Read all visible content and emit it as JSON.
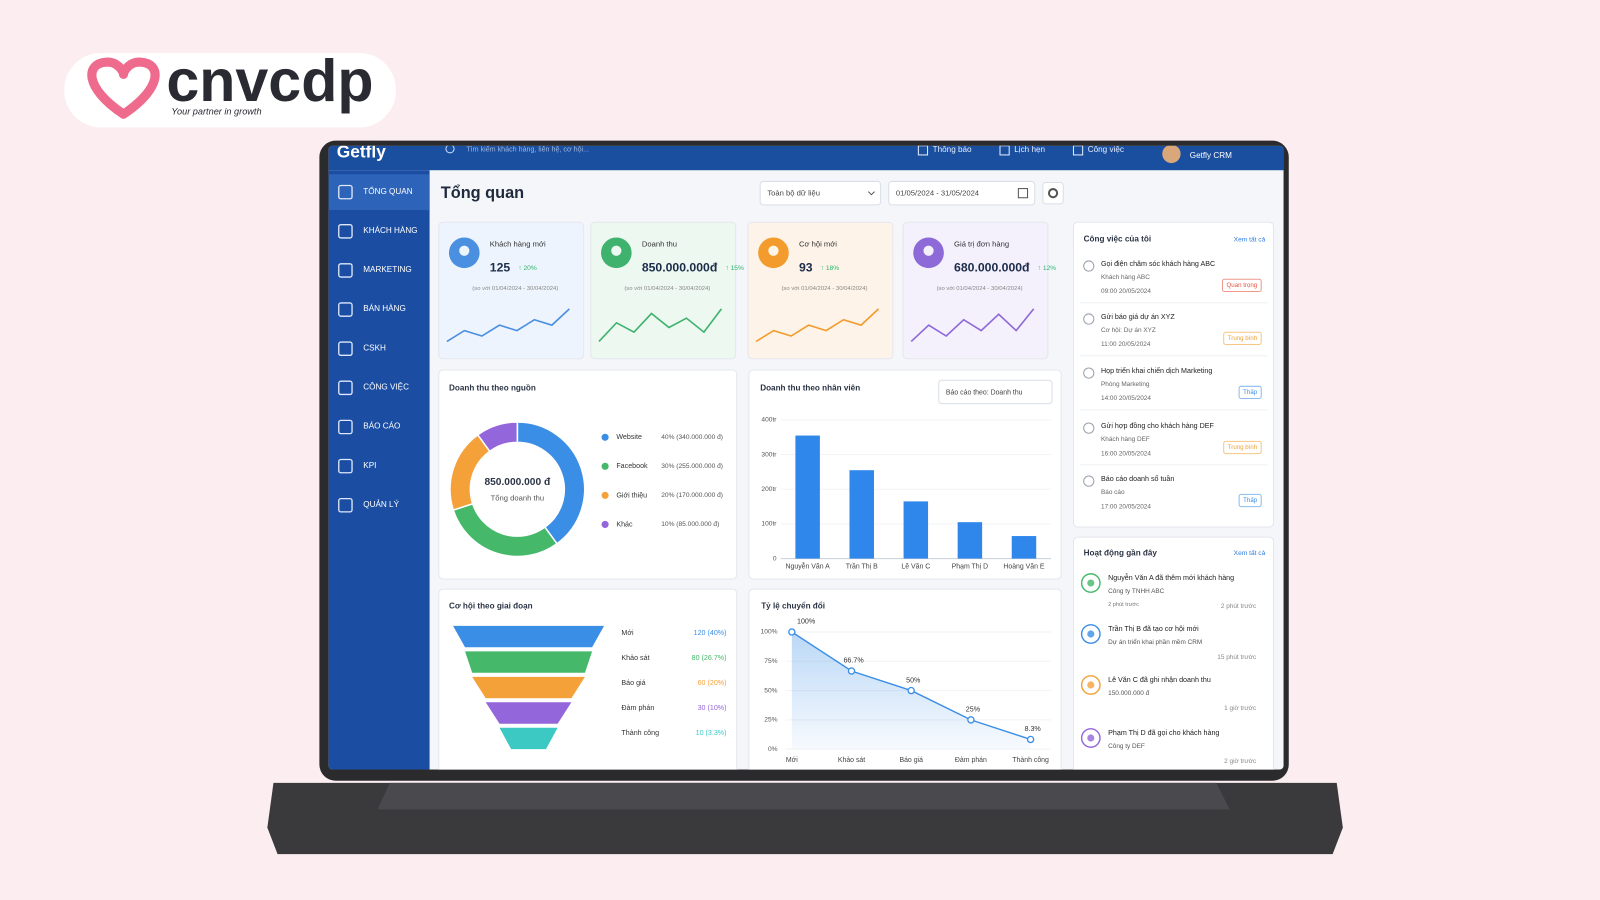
{
  "brand": {
    "name": "cnvcdp",
    "tagline": "Your partner in growth"
  },
  "app": {
    "logo": "Getfly",
    "search_placeholder": "Tìm kiếm khách hàng, liên hệ, cơ hội...",
    "top_actions": [
      "Thông báo",
      "Lịch hẹn",
      "Công việc"
    ],
    "user": "Getfly CRM"
  },
  "sidebar": [
    "TỔNG QUAN",
    "KHÁCH HÀNG",
    "MARKETING",
    "BÁN HÀNG",
    "CSKH",
    "CÔNG VIỆC",
    "BÁO CÁO",
    "KPI",
    "QUẢN LÝ"
  ],
  "page": {
    "title": "Tổng quan",
    "filter": "Toàn bộ dữ liệu",
    "date_range": "01/05/2024 - 31/05/2024"
  },
  "kpis": [
    {
      "label": "Khách hàng mới",
      "value": "125",
      "change": "↑ 20%",
      "compare": "(so với 01/04/2024 - 30/04/2024)",
      "color": "#4a8fe0",
      "background": "#eef4fd",
      "trend": [
        3,
        5,
        4,
        6,
        5,
        7,
        6,
        9
      ]
    },
    {
      "label": "Doanh thu",
      "value": "850.000.000đ",
      "change": "↑ 15%",
      "compare": "(so với 01/04/2024 - 30/04/2024)",
      "color": "#3fb36d",
      "background": "#edf8f1",
      "trend": [
        2,
        6,
        4,
        8,
        5,
        7,
        4,
        9
      ]
    },
    {
      "label": "Cơ hội mới",
      "value": "93",
      "change": "↑ 18%",
      "compare": "(so với 01/04/2024 - 30/04/2024)",
      "color": "#f39c2d",
      "background": "#fdf3e8",
      "trend": [
        2,
        4,
        3,
        5,
        4,
        6,
        5,
        8
      ]
    },
    {
      "label": "Giá trị đơn hàng",
      "value": "680.000.000đ",
      "change": "↑ 12%",
      "compare": "(so với 01/04/2024 - 30/04/2024)",
      "color": "#8e6ad8",
      "background": "#f4f0fc",
      "trend": [
        3,
        6,
        4,
        7,
        5,
        8,
        5,
        9
      ]
    }
  ],
  "revenue_by_source": {
    "type": "pie",
    "title": "Doanh thu theo nguồn",
    "center_value": "850.000.000 đ",
    "center_label": "Tổng doanh thu",
    "categories": [
      "Website",
      "Facebook",
      "Giới thiệu",
      "Khác"
    ],
    "values": [
      40,
      30,
      20,
      10
    ],
    "value_labels": [
      "40% (340.000.000 đ)",
      "30% (255.000.000 đ)",
      "20% (170.000.000 đ)",
      "10% (85.000.000 đ)"
    ],
    "colors": [
      "#3a8ee6",
      "#45b86a",
      "#f4a13a",
      "#9466dc"
    ]
  },
  "revenue_by_staff": {
    "type": "bar",
    "title": "Doanh thu theo nhân viên",
    "report_select": "Báo cáo theo: Doanh thu",
    "categories": [
      "Nguyễn Văn A",
      "Trần Thị B",
      "Lê Văn C",
      "Phạm Thị D",
      "Hoàng Văn E"
    ],
    "values": [
      355,
      255,
      165,
      105,
      65
    ],
    "ylim": [
      0,
      400
    ],
    "yticks": [
      0,
      {
        "value": 100,
        "label": "100tr"
      },
      {
        "value": 200,
        "label": "200tr"
      },
      {
        "value": 300,
        "label": "300tr"
      },
      {
        "value": 400,
        "label": "400tr"
      }
    ],
    "color": "#2f86eb"
  },
  "opportunity_stages": {
    "type": "funnel",
    "title": "Cơ hội theo giai đoạn",
    "categories": [
      "Mới",
      "Khảo sát",
      "Báo giá",
      "Đàm phán",
      "Thành công"
    ],
    "values": [
      120,
      80,
      60,
      30,
      10
    ],
    "value_labels": [
      "120 (40%)",
      "80 (26.7%)",
      "60 (20%)",
      "30 (10%)",
      "10 (3.3%)"
    ],
    "colors": [
      "#3a8ee6",
      "#45b86a",
      "#f4a13a",
      "#9466dc",
      "#3cc9c4"
    ]
  },
  "conversion_rate": {
    "type": "line",
    "title": "Tỷ lệ chuyển đổi",
    "categories": [
      "Mới",
      "Khảo sát",
      "Báo giá",
      "Đàm phán",
      "Thành công"
    ],
    "values": [
      100,
      66.7,
      50,
      25,
      8.3
    ],
    "value_labels": [
      "100%",
      "66.7%",
      "50%",
      "25%",
      "8.3%"
    ],
    "ylim": [
      0,
      100
    ],
    "yticks": [
      {
        "value": 0,
        "label": "0%"
      },
      {
        "value": 25,
        "label": "25%"
      },
      {
        "value": 50,
        "label": "50%"
      },
      {
        "value": 75,
        "label": "75%"
      },
      {
        "value": 100,
        "label": "100%"
      }
    ],
    "color": "#3a8ee6"
  },
  "tasks": {
    "title": "Công việc của tôi",
    "view_all": "Xem tất cả",
    "items": [
      {
        "title": "Gọi điện chăm sóc khách hàng ABC",
        "sub": "Khách hàng ABC",
        "time": "09:00 20/05/2024",
        "priority": "Quan trọng",
        "color": "#e5533d"
      },
      {
        "title": "Gửi báo giá dự án XYZ",
        "sub": "Cơ hội: Dự án XYZ",
        "time": "11:00 20/05/2024",
        "priority": "Trung bình",
        "color": "#f0a030"
      },
      {
        "title": "Họp triển khai chiến dịch Marketing",
        "sub": "Phòng Marketing",
        "time": "14:00 20/05/2024",
        "priority": "Thấp",
        "color": "#3a8ee6"
      },
      {
        "title": "Gửi hợp đồng cho khách hàng DEF",
        "sub": "Khách hàng DEF",
        "time": "16:00 20/05/2024",
        "priority": "Trung bình",
        "color": "#f0a030"
      },
      {
        "title": "Báo cáo doanh số tuần",
        "sub": "Báo cáo",
        "time": "17:00 20/05/2024",
        "priority": "Thấp",
        "color": "#3a8ee6"
      }
    ]
  },
  "activities": {
    "title": "Hoạt động gần đây",
    "view_all": "Xem tất cả",
    "items": [
      {
        "text": "Nguyễn Văn A đã thêm mới khách hàng",
        "detail": "Công ty TNHH ABC",
        "note": "2 phút trước",
        "time": "2 phút trước",
        "color": "#45b86a"
      },
      {
        "text": "Trần Thị B đã tạo cơ hội mới",
        "detail": "Dự án triển khai phần mềm CRM",
        "time": "15 phút trước",
        "color": "#3a8ee6"
      },
      {
        "text": "Lê Văn C đã ghi nhận doanh thu",
        "detail": "150.000.000 đ",
        "time": "1 giờ trước",
        "color": "#f4a13a"
      },
      {
        "text": "Phạm Thị D đã gọi cho khách hàng",
        "detail": "Công ty DEF",
        "time": "2 giờ trước",
        "color": "#9466dc"
      }
    ]
  }
}
